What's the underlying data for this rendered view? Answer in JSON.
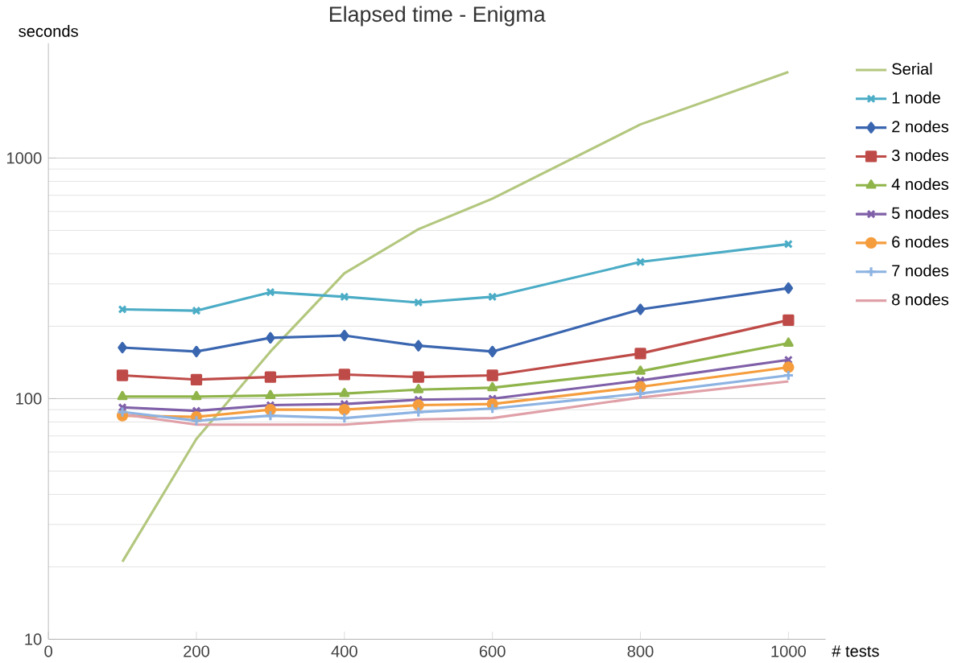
{
  "chart_data": {
    "type": "line",
    "title": "Elapsed time - Enigma",
    "xlabel": "# tests",
    "ylabel": "seconds",
    "log": "y",
    "grid": "y",
    "legend": "right",
    "x": [
      100,
      200,
      300,
      400,
      500,
      600,
      800,
      1000
    ],
    "xlim": [
      0,
      1050
    ],
    "xticks": [
      0,
      200,
      400,
      600,
      800,
      1000
    ],
    "ylim": [
      10,
      3000
    ],
    "yticks": [
      10,
      100,
      1000
    ],
    "series": [
      {
        "name": "Serial",
        "color": "#b3c77e",
        "marker": "none",
        "values": [
          21,
          68,
          157,
          332,
          506,
          678,
          1380,
          2280
        ]
      },
      {
        "name": "1 node",
        "color": "#4bacc6",
        "marker": "cross",
        "values": [
          235,
          232,
          277,
          265,
          251,
          265,
          370,
          439
        ]
      },
      {
        "name": "2 nodes",
        "color": "#3a66b0",
        "marker": "diamond",
        "values": [
          163,
          157,
          179,
          183,
          166,
          157,
          235,
          288
        ]
      },
      {
        "name": "3 nodes",
        "color": "#be4b48",
        "marker": "square",
        "values": [
          125,
          120,
          123,
          126,
          123,
          125,
          154,
          212
        ]
      },
      {
        "name": "4 nodes",
        "color": "#8fb44a",
        "marker": "triangle",
        "values": [
          102,
          102,
          103,
          105,
          109,
          111,
          130,
          170
        ]
      },
      {
        "name": "5 nodes",
        "color": "#7f5fa8",
        "marker": "cross",
        "values": [
          92,
          89,
          94,
          95,
          99,
          100,
          119,
          145
        ]
      },
      {
        "name": "6 nodes",
        "color": "#f59d3d",
        "marker": "circle",
        "values": [
          85,
          84,
          90,
          90,
          94,
          95,
          112,
          135
        ]
      },
      {
        "name": "7 nodes",
        "color": "#8db3e2",
        "marker": "plus",
        "values": [
          88,
          81,
          85,
          83,
          88,
          91,
          105,
          125
        ]
      },
      {
        "name": "8 nodes",
        "color": "#e0a0a8",
        "marker": "none",
        "values": [
          86,
          78,
          78,
          78,
          82,
          83,
          101,
          118
        ]
      }
    ]
  }
}
